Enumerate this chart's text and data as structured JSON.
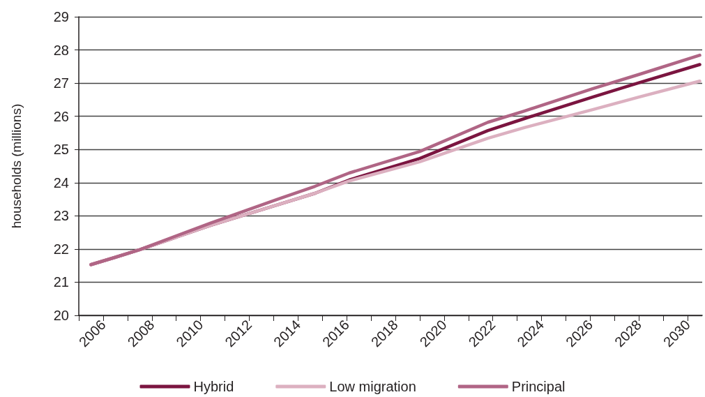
{
  "chart_data": {
    "type": "line",
    "ylabel": "households (millions)",
    "x": [
      2005.5,
      2006.5,
      2007.5,
      2010.4,
      2013.2,
      2014.7,
      2016.1,
      2019,
      2021.8,
      2023.3,
      2026.1,
      2028,
      2030.5
    ],
    "series": [
      {
        "name": "Hybrid",
        "color": "#7b1540",
        "values": [
          21.53,
          21.75,
          21.98,
          22.71,
          23.34,
          23.68,
          24.08,
          24.73,
          25.57,
          25.93,
          26.58,
          27.01,
          27.56
        ]
      },
      {
        "name": "Low migration",
        "color": "#dcb0c0",
        "values": [
          21.53,
          21.75,
          21.98,
          22.71,
          23.34,
          23.68,
          24.05,
          24.63,
          25.34,
          25.66,
          26.2,
          26.58,
          27.06
        ]
      },
      {
        "name": "Principal",
        "color": "#b06585",
        "values": [
          21.53,
          21.75,
          21.98,
          22.78,
          23.51,
          23.89,
          24.29,
          24.94,
          25.82,
          26.16,
          26.83,
          27.26,
          27.84
        ]
      }
    ],
    "xlim": [
      2005,
      2030.6
    ],
    "xticks": [
      {
        "value": 2005,
        "label": null
      },
      2006,
      {
        "value": 2007,
        "label": null
      },
      2008,
      {
        "value": 2009,
        "label": null
      },
      2010,
      {
        "value": 2011,
        "label": null
      },
      2012,
      {
        "value": 2013,
        "label": null
      },
      2014,
      {
        "value": 2015,
        "label": null
      },
      2016,
      {
        "value": 2017,
        "label": null
      },
      2018,
      {
        "value": 2019,
        "label": null
      },
      2020,
      {
        "value": 2021,
        "label": null
      },
      2022,
      {
        "value": 2023,
        "label": null
      },
      2024,
      {
        "value": 2025,
        "label": null
      },
      2026,
      {
        "value": 2027,
        "label": null
      },
      2028,
      {
        "value": 2029,
        "label": null
      },
      2030
    ],
    "ylim": [
      20,
      29
    ],
    "yticks": [
      20,
      21,
      22,
      23,
      24,
      25,
      26,
      27,
      28,
      29
    ],
    "grid": "y",
    "legend": "bottom",
    "marker": "none",
    "line_style": "solid"
  }
}
